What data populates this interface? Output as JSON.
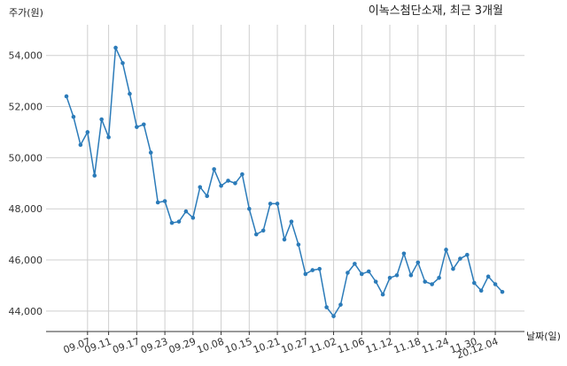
{
  "chart_data": {
    "type": "line",
    "title": "이녹스첨단소재, 최근 3개월",
    "ylabel": "주가(원)",
    "xlabel": "날짜(일)",
    "ylim": [
      43200,
      55200
    ],
    "yticks": [
      44000,
      46000,
      48000,
      50000,
      52000,
      54000
    ],
    "ytick_labels": [
      "44,000",
      "46,000",
      "48,000",
      "50,000",
      "52,000",
      "54,000"
    ],
    "xtick_labels": [
      "09.07",
      "09.11",
      "09.17",
      "09.23",
      "09.29",
      "10.08",
      "10.15",
      "10.21",
      "10.27",
      "11.02",
      "11.06",
      "11.12",
      "11.18",
      "11.24",
      "11.30",
      "20.12.04"
    ],
    "xtick_index": [
      3,
      6,
      10,
      14,
      18,
      22,
      26,
      30,
      34,
      38,
      42,
      46,
      50,
      54,
      58,
      61
    ],
    "grid": true,
    "series": [
      {
        "values": [
          52400,
          51600,
          50500,
          51000,
          49300,
          51500,
          50800,
          54300,
          53700,
          52500,
          51200,
          51300,
          50200,
          48250,
          48300,
          47450,
          47500,
          47900,
          47650,
          48850,
          48500,
          49550,
          48900,
          49100,
          49000,
          49350,
          48000,
          47000,
          47150,
          48200,
          48200,
          46800,
          47500,
          46600,
          45450,
          45600,
          45650,
          44150,
          43800,
          44250,
          45500,
          45850,
          45450,
          45550,
          45150,
          44650,
          45300,
          45400,
          46250,
          45400,
          45900,
          45150,
          45050,
          45300,
          46400,
          45650,
          46050,
          46200,
          45100,
          44800,
          45350,
          45050,
          44750
        ]
      }
    ]
  }
}
